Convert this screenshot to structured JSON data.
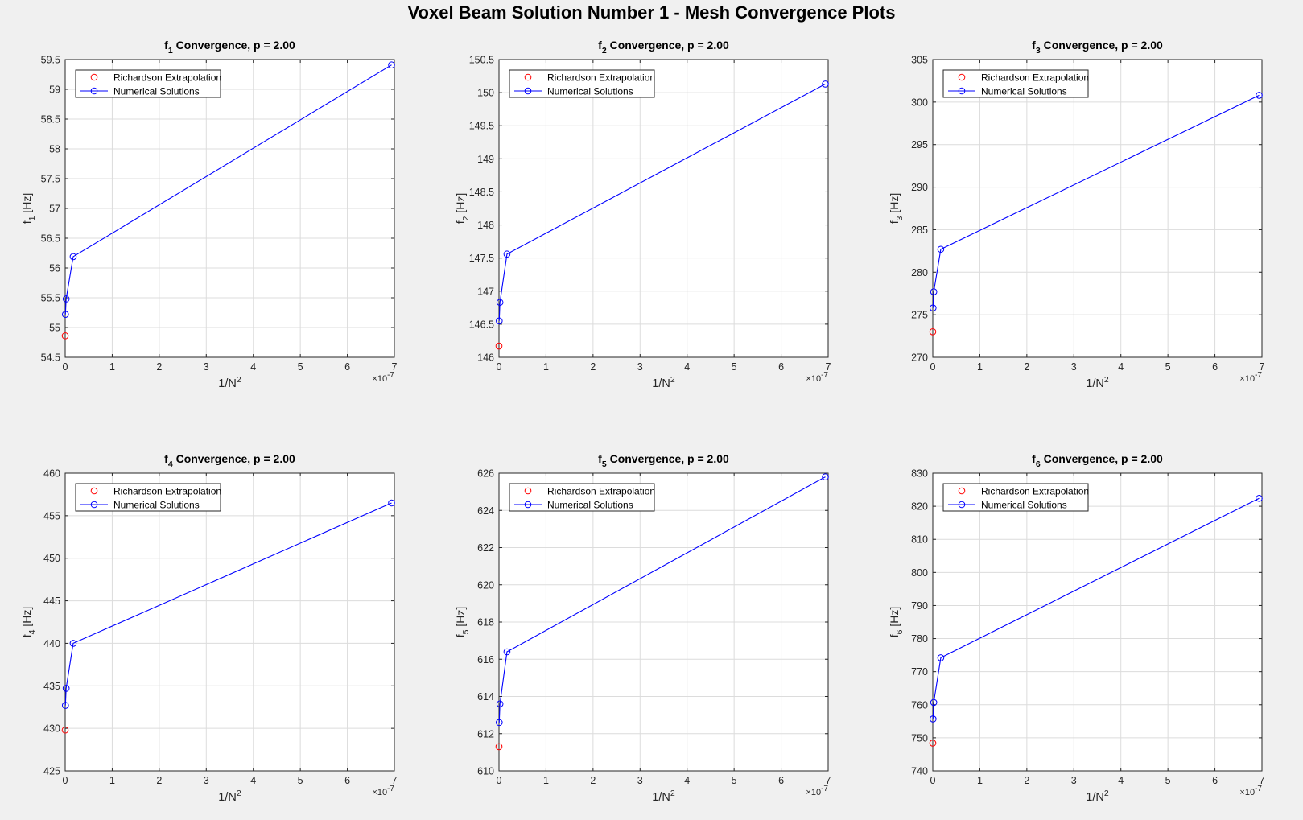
{
  "figure_title": "Voxel Beam Solution Number 1 - Mesh Convergence Plots",
  "colors": {
    "numerical": "#0000ff",
    "richardson": "#ff0000",
    "grid": "#dcdcdc",
    "background": "#f0f0f0"
  },
  "chart_data": [
    {
      "type": "line",
      "title_main": "f",
      "title_sub": "1",
      "title_rest": " Convergence, p = 2.00",
      "xlabel_main": "1/N",
      "xlabel_sup": "2",
      "ylabel_main": "f",
      "ylabel_sub": "1",
      "ylabel_rest": " [Hz]",
      "x_exponent_base": "×10",
      "x_exponent": "-7",
      "xlim": [
        0,
        7
      ],
      "ylim": [
        54.5,
        59.5
      ],
      "xticks": [
        0,
        1,
        2,
        3,
        4,
        5,
        6,
        7
      ],
      "xtick_labels": [
        "0",
        "1",
        "2",
        "3",
        "4",
        "5",
        "6",
        "7"
      ],
      "yticks": [
        54.5,
        55,
        55.5,
        56,
        56.5,
        57,
        57.5,
        58,
        58.5,
        59,
        59.5
      ],
      "ytick_labels": [
        "54.5",
        "55",
        "55.5",
        "56",
        "56.5",
        "57",
        "57.5",
        "58",
        "58.5",
        "59",
        "59.5"
      ],
      "grid": true,
      "legend_position": "top-left",
      "series": [
        {
          "name": "Richardson Extrapolation",
          "marker": "circle",
          "line": false,
          "x": [
            0
          ],
          "y": [
            54.86
          ]
        },
        {
          "name": "Numerical Solutions",
          "marker": "circle",
          "line": true,
          "x": [
            6.94,
            0.17,
            0.02,
            0.005
          ],
          "y": [
            59.41,
            56.19,
            55.48,
            55.22
          ]
        }
      ]
    },
    {
      "type": "line",
      "title_main": "f",
      "title_sub": "2",
      "title_rest": " Convergence, p = 2.00",
      "xlabel_main": "1/N",
      "xlabel_sup": "2",
      "ylabel_main": "f",
      "ylabel_sub": "2",
      "ylabel_rest": " [Hz]",
      "x_exponent_base": "×10",
      "x_exponent": "-7",
      "xlim": [
        0,
        7
      ],
      "ylim": [
        146,
        150.5
      ],
      "xticks": [
        0,
        1,
        2,
        3,
        4,
        5,
        6,
        7
      ],
      "xtick_labels": [
        "0",
        "1",
        "2",
        "3",
        "4",
        "5",
        "6",
        "7"
      ],
      "yticks": [
        146,
        146.5,
        147,
        147.5,
        148,
        148.5,
        149,
        149.5,
        150,
        150.5
      ],
      "ytick_labels": [
        "146",
        "146.5",
        "147",
        "147.5",
        "148",
        "148.5",
        "149",
        "149.5",
        "150",
        "150.5"
      ],
      "grid": true,
      "legend_position": "top-left",
      "series": [
        {
          "name": "Richardson Extrapolation",
          "marker": "circle",
          "line": false,
          "x": [
            0
          ],
          "y": [
            146.17
          ]
        },
        {
          "name": "Numerical Solutions",
          "marker": "circle",
          "line": true,
          "x": [
            6.94,
            0.17,
            0.02,
            0.005
          ],
          "y": [
            150.13,
            147.56,
            146.83,
            146.55
          ]
        }
      ]
    },
    {
      "type": "line",
      "title_main": "f",
      "title_sub": "3",
      "title_rest": " Convergence, p = 2.00",
      "xlabel_main": "1/N",
      "xlabel_sup": "2",
      "ylabel_main": "f",
      "ylabel_sub": "3",
      "ylabel_rest": " [Hz]",
      "x_exponent_base": "×10",
      "x_exponent": "-7",
      "xlim": [
        0,
        7
      ],
      "ylim": [
        270,
        305
      ],
      "xticks": [
        0,
        1,
        2,
        3,
        4,
        5,
        6,
        7
      ],
      "xtick_labels": [
        "0",
        "1",
        "2",
        "3",
        "4",
        "5",
        "6",
        "7"
      ],
      "yticks": [
        270,
        275,
        280,
        285,
        290,
        295,
        300,
        305
      ],
      "ytick_labels": [
        "270",
        "275",
        "280",
        "285",
        "290",
        "295",
        "300",
        "305"
      ],
      "grid": true,
      "legend_position": "top-left",
      "series": [
        {
          "name": "Richardson Extrapolation",
          "marker": "circle",
          "line": false,
          "x": [
            0
          ],
          "y": [
            273.0
          ]
        },
        {
          "name": "Numerical Solutions",
          "marker": "circle",
          "line": true,
          "x": [
            6.94,
            0.17,
            0.02,
            0.005
          ],
          "y": [
            300.8,
            282.7,
            277.7,
            275.8
          ]
        }
      ]
    },
    {
      "type": "line",
      "title_main": "f",
      "title_sub": "4",
      "title_rest": " Convergence, p = 2.00",
      "xlabel_main": "1/N",
      "xlabel_sup": "2",
      "ylabel_main": "f",
      "ylabel_sub": "4",
      "ylabel_rest": " [Hz]",
      "x_exponent_base": "×10",
      "x_exponent": "-7",
      "xlim": [
        0,
        7
      ],
      "ylim": [
        425,
        460
      ],
      "xticks": [
        0,
        1,
        2,
        3,
        4,
        5,
        6,
        7
      ],
      "xtick_labels": [
        "0",
        "1",
        "2",
        "3",
        "4",
        "5",
        "6",
        "7"
      ],
      "yticks": [
        425,
        430,
        435,
        440,
        445,
        450,
        455,
        460
      ],
      "ytick_labels": [
        "425",
        "430",
        "435",
        "440",
        "445",
        "450",
        "455",
        "460"
      ],
      "grid": true,
      "legend_position": "top-left",
      "series": [
        {
          "name": "Richardson Extrapolation",
          "marker": "circle",
          "line": false,
          "x": [
            0
          ],
          "y": [
            429.8
          ]
        },
        {
          "name": "Numerical Solutions",
          "marker": "circle",
          "line": true,
          "x": [
            6.94,
            0.17,
            0.02,
            0.005
          ],
          "y": [
            456.5,
            440.0,
            434.7,
            432.7
          ]
        }
      ]
    },
    {
      "type": "line",
      "title_main": "f",
      "title_sub": "5",
      "title_rest": " Convergence, p = 2.00",
      "xlabel_main": "1/N",
      "xlabel_sup": "2",
      "ylabel_main": "f",
      "ylabel_sub": "5",
      "ylabel_rest": " [Hz]",
      "x_exponent_base": "×10",
      "x_exponent": "-7",
      "xlim": [
        0,
        7
      ],
      "ylim": [
        610,
        626
      ],
      "xticks": [
        0,
        1,
        2,
        3,
        4,
        5,
        6,
        7
      ],
      "xtick_labels": [
        "0",
        "1",
        "2",
        "3",
        "4",
        "5",
        "6",
        "7"
      ],
      "yticks": [
        610,
        612,
        614,
        616,
        618,
        620,
        622,
        624,
        626
      ],
      "ytick_labels": [
        "610",
        "612",
        "614",
        "616",
        "618",
        "620",
        "622",
        "624",
        "626"
      ],
      "grid": true,
      "legend_position": "top-left",
      "series": [
        {
          "name": "Richardson Extrapolation",
          "marker": "circle",
          "line": false,
          "x": [
            0
          ],
          "y": [
            611.3
          ]
        },
        {
          "name": "Numerical Solutions",
          "marker": "circle",
          "line": true,
          "x": [
            6.94,
            0.17,
            0.02,
            0.005
          ],
          "y": [
            625.8,
            616.4,
            613.6,
            612.6
          ]
        }
      ]
    },
    {
      "type": "line",
      "title_main": "f",
      "title_sub": "6",
      "title_rest": " Convergence, p = 2.00",
      "xlabel_main": "1/N",
      "xlabel_sup": "2",
      "ylabel_main": "f",
      "ylabel_sub": "6",
      "ylabel_rest": " [Hz]",
      "x_exponent_base": "×10",
      "x_exponent": "-7",
      "xlim": [
        0,
        7
      ],
      "ylim": [
        740,
        830
      ],
      "xticks": [
        0,
        1,
        2,
        3,
        4,
        5,
        6,
        7
      ],
      "xtick_labels": [
        "0",
        "1",
        "2",
        "3",
        "4",
        "5",
        "6",
        "7"
      ],
      "yticks": [
        740,
        750,
        760,
        770,
        780,
        790,
        800,
        810,
        820,
        830
      ],
      "ytick_labels": [
        "740",
        "750",
        "760",
        "770",
        "780",
        "790",
        "800",
        "810",
        "820",
        "830"
      ],
      "grid": true,
      "legend_position": "top-left",
      "series": [
        {
          "name": "Richardson Extrapolation",
          "marker": "circle",
          "line": false,
          "x": [
            0
          ],
          "y": [
            748.4
          ]
        },
        {
          "name": "Numerical Solutions",
          "marker": "circle",
          "line": true,
          "x": [
            6.94,
            0.17,
            0.02,
            0.005
          ],
          "y": [
            822.4,
            774.2,
            760.7,
            755.7
          ]
        }
      ]
    }
  ]
}
